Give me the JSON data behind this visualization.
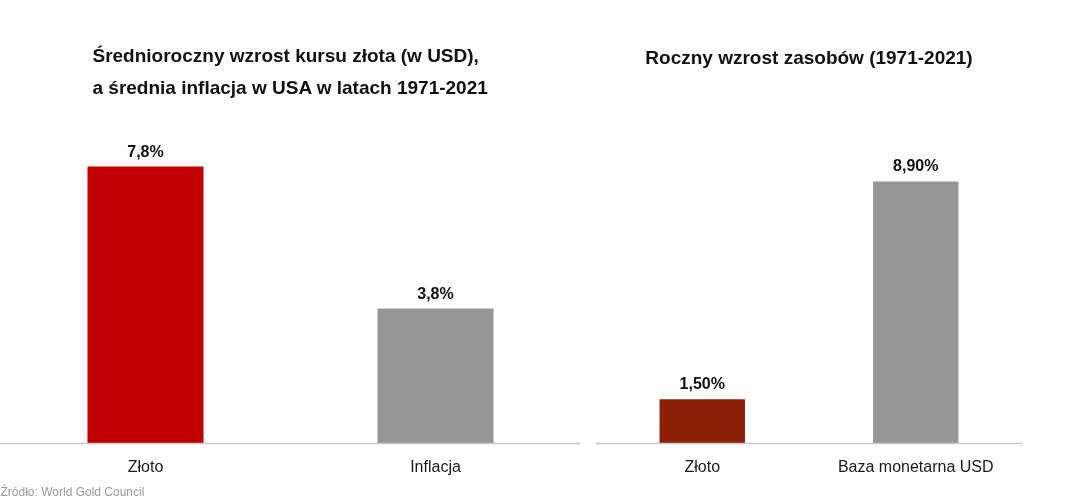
{
  "chart_data": [
    {
      "type": "bar",
      "title": "Średnioroczny wzrost kursu złota (w USD),\na średnia inflacja w USA w latach 1971-2021",
      "categories": [
        "Złoto",
        "Inflacja"
      ],
      "values": [
        7.8,
        3.8
      ],
      "colors": [
        "#c00000",
        "#969696"
      ],
      "value_labels": [
        "7,8%",
        "3,8%"
      ],
      "grid": false,
      "annotations": [
        "Źródło: World Gold Council"
      ]
    },
    {
      "type": "bar",
      "title": "Roczny wzrost zasobów (1971-2021)",
      "categories": [
        "Złoto",
        "Baza monetarna USD"
      ],
      "values": [
        1.5,
        8.9
      ],
      "colors": [
        "#8b2005",
        "#969696"
      ],
      "value_labels": [
        "1,50%",
        "8,90%"
      ],
      "grid": false
    }
  ]
}
